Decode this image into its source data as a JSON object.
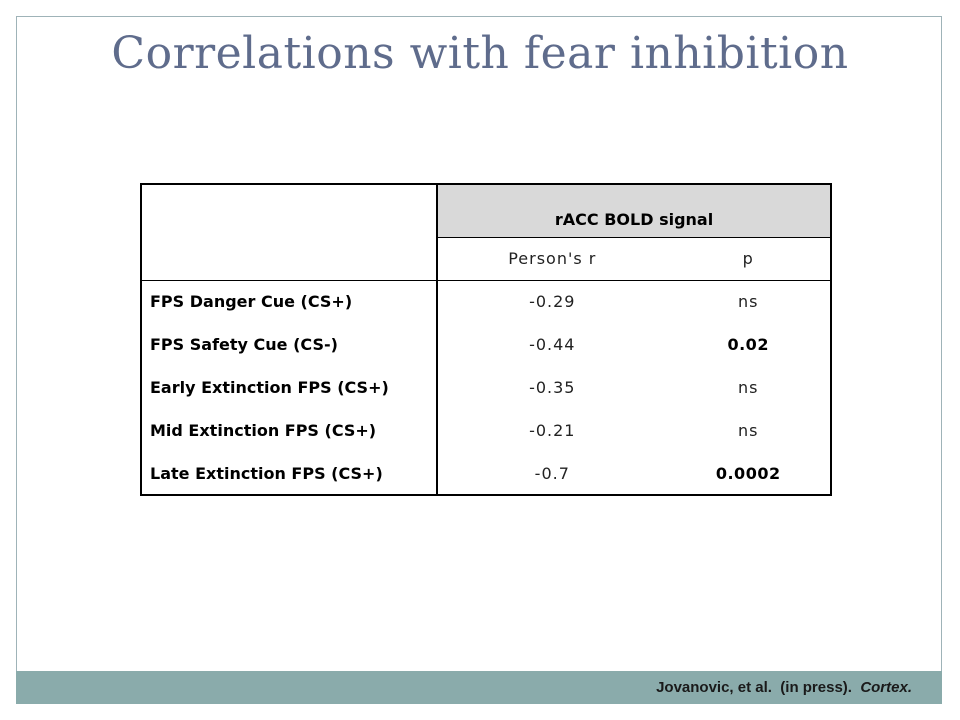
{
  "slide": {
    "title": "Correlations with fear inhibition"
  },
  "table": {
    "group_header": "rACC BOLD signal",
    "col_r": "Person's r",
    "col_p": "p",
    "rows": [
      {
        "label": "FPS Danger Cue (CS+)",
        "r": "-0.29",
        "p": "ns",
        "p_bold": false
      },
      {
        "label": "FPS Safety Cue (CS-)",
        "r": "-0.44",
        "p": "0.02",
        "p_bold": true
      },
      {
        "label": "Early Extinction FPS (CS+)",
        "r": "-0.35",
        "p": "ns",
        "p_bold": false
      },
      {
        "label": "Mid Extinction FPS (CS+)",
        "r": "-0.21",
        "p": "ns",
        "p_bold": false
      },
      {
        "label": "Late Extinction FPS (CS+)",
        "r": "-0.7",
        "p": "0.0002",
        "p_bold": true
      }
    ]
  },
  "footer": {
    "citation_main": "Jovanovic, et al.  (in press).  ",
    "citation_journal": "Cortex."
  },
  "colors": {
    "title": "#5f6c8c",
    "footer_bar": "#8aabab",
    "header_fill": "#d9d9d9"
  }
}
